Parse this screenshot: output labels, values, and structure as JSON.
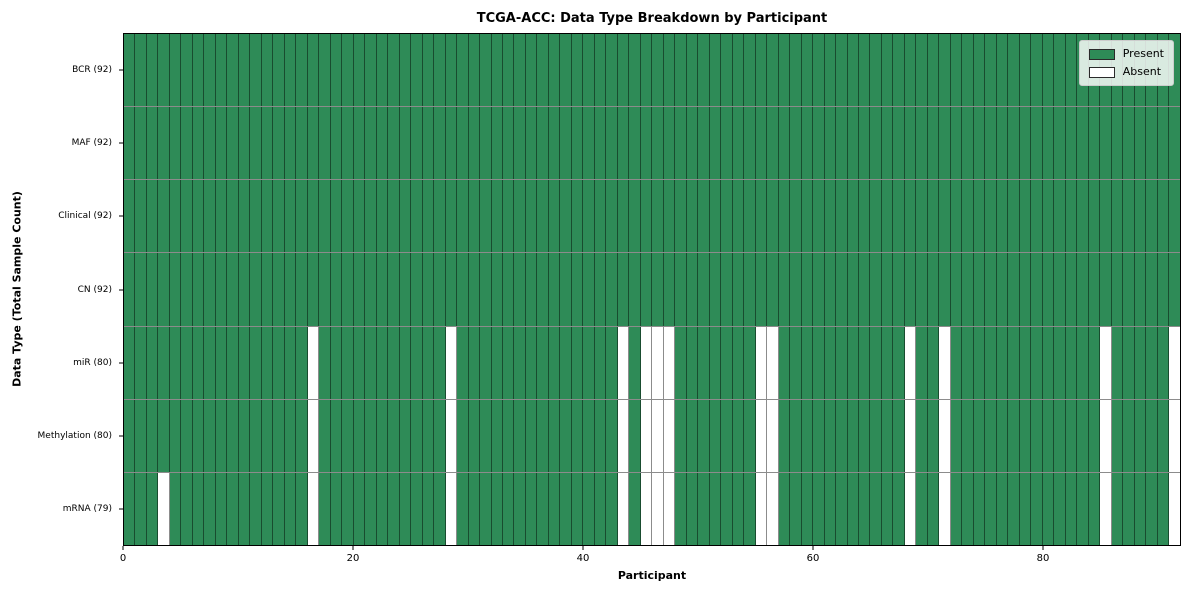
{
  "title": "TCGA-ACC: Data Type Breakdown by Participant",
  "xlabel": "Participant",
  "ylabel": "Data Type (Total Sample Count)",
  "legend": {
    "present_label": "Present",
    "absent_label": "Absent"
  },
  "colors": {
    "present": "#2e8b57",
    "absent": "#ffffff",
    "cell_edge": "rgba(0,0,0,0.45)",
    "spine": "#000000",
    "background": "#ffffff"
  },
  "chart_data": {
    "type": "heatmap",
    "title": "TCGA-ACC: Data Type Breakdown by Participant",
    "xlabel": "Participant",
    "ylabel": "Data Type (Total Sample Count)",
    "legend_entries": [
      "Present",
      "Absent"
    ],
    "legend_position": "upper right",
    "n_participants": 92,
    "x_range": [
      0,
      92
    ],
    "x_ticks": [
      0,
      20,
      40,
      60,
      80
    ],
    "rows": [
      {
        "name": "BCR",
        "label": "BCR (92)",
        "present_count": 92,
        "absent_participants": []
      },
      {
        "name": "MAF",
        "label": "MAF (92)",
        "present_count": 92,
        "absent_participants": []
      },
      {
        "name": "Clinical",
        "label": "Clinical (92)",
        "present_count": 92,
        "absent_participants": []
      },
      {
        "name": "CN",
        "label": "CN (92)",
        "present_count": 92,
        "absent_participants": []
      },
      {
        "name": "miR",
        "label": "miR (80)",
        "present_count": 80,
        "absent_participants": [
          16,
          28,
          43,
          45,
          46,
          47,
          55,
          56,
          68,
          71,
          85,
          91
        ]
      },
      {
        "name": "Methylation",
        "label": "Methylation (80)",
        "present_count": 80,
        "absent_participants": [
          16,
          28,
          43,
          45,
          46,
          47,
          55,
          56,
          68,
          71,
          85,
          91
        ]
      },
      {
        "name": "mRNA",
        "label": "mRNA (79)",
        "present_count": 79,
        "absent_participants": [
          3,
          16,
          28,
          43,
          45,
          46,
          47,
          55,
          56,
          68,
          71,
          85,
          91
        ]
      }
    ]
  }
}
